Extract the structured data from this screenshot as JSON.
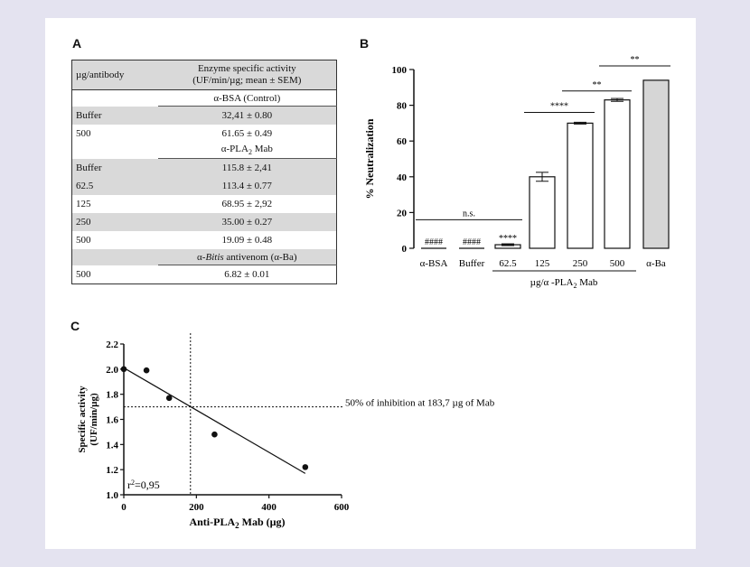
{
  "panels": {
    "a": "A",
    "b": "B",
    "c": "C"
  },
  "table": {
    "header": {
      "col1": "µg/antibody",
      "col2_line1": "Enzyme specific activity",
      "col2_line2": "(UF/min/µg; mean ± SEM)"
    },
    "groups": [
      {
        "title": "α-BSA (Control)",
        "rows": [
          {
            "label": "Buffer",
            "value": "32,41 ± 0.80"
          },
          {
            "label": "500",
            "value": "61.65 ± 0.49"
          }
        ]
      },
      {
        "title_pre": "α-PLA",
        "title_sub": "2",
        "title_post": " Mab",
        "rows": [
          {
            "label": "Buffer",
            "value": "115.8 ± 2,41"
          },
          {
            "label": "62.5",
            "value": "113.4 ± 0.77"
          },
          {
            "label": "125",
            "value": "68.95 ± 2,92"
          },
          {
            "label": "250",
            "value": "35.00 ± 0.27"
          },
          {
            "label": "500",
            "value": "19.09 ± 0.48"
          }
        ]
      },
      {
        "title_pre": "α-",
        "title_italic": "Bitis",
        "title_post": " antivenom (α-Ba)",
        "rows": [
          {
            "label": "500",
            "value": "6.82 ± 0.01"
          }
        ]
      }
    ]
  },
  "chart_data": [
    {
      "type": "bar",
      "ylabel": "% Neutralization",
      "ylim": [
        0,
        100
      ],
      "yticks": [
        "0",
        "20",
        "40",
        "60",
        "80",
        "100"
      ],
      "categories": [
        "α-BSA",
        "Buffer",
        "62.5",
        "125",
        "250",
        "500",
        "α-Ba"
      ],
      "values": [
        0,
        0,
        2,
        40,
        70,
        83,
        94
      ],
      "errors": [
        0,
        0,
        0.5,
        2.5,
        0.5,
        0.8,
        0
      ],
      "bar_colors": [
        "#ffffff",
        "#ffffff",
        "#ffffff",
        "#ffffff",
        "#ffffff",
        "#ffffff",
        "#d6d6d6"
      ],
      "bar_labels": [
        "####",
        "####",
        "****",
        "",
        "",
        "",
        ""
      ],
      "group_label_pre": "µg/α -PLA",
      "group_label_sub": "2",
      "group_label_post": " Mab",
      "significance": [
        {
          "from": 0,
          "to": 2,
          "y": 16,
          "label": "n.s."
        },
        {
          "from": 3,
          "to": 4,
          "y": 76,
          "label": "****"
        },
        {
          "from": 4,
          "to": 5,
          "y": 88,
          "label": "**"
        },
        {
          "from": 5,
          "to": 6,
          "y": 102,
          "label": "**"
        }
      ]
    },
    {
      "type": "scatter",
      "xlabel_pre": "Anti-PLA",
      "xlabel_sub": "2",
      "xlabel_post": " Mab (µg)",
      "ylabel_line1": "Specific activity",
      "ylabel_line2": "(UF/min/µg)",
      "xlim": [
        0,
        600
      ],
      "ylim": [
        1.0,
        2.2
      ],
      "xticks": [
        "0",
        "200",
        "400",
        "600"
      ],
      "yticks": [
        "1.0",
        "1.2",
        "1.4",
        "1.6",
        "1.8",
        "2.0",
        "2.2"
      ],
      "x": [
        0,
        62.5,
        125,
        250,
        500
      ],
      "y": [
        2.0,
        1.99,
        1.77,
        1.48,
        1.22
      ],
      "fit": {
        "x": [
          0,
          500
        ],
        "y": [
          2.01,
          1.17
        ]
      },
      "ref_x": 183.7,
      "ref_y": 1.7,
      "annotation": "50% of inhibition at 183,7 µg of Mab",
      "r2_pre": "r",
      "r2_sup": "2",
      "r2_post": "=0,95"
    }
  ]
}
